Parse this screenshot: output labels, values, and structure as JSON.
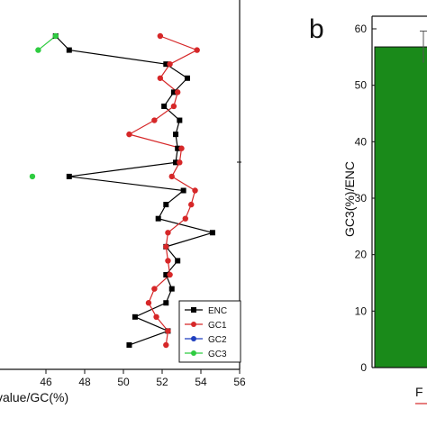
{
  "panel_b_letter": "b",
  "chart_data": [
    {
      "type": "scatter",
      "xlabel": "value/GC(%)",
      "ylabel": "",
      "xlim": [
        44,
        56
      ],
      "xticks": [
        "46",
        "48",
        "50",
        "52",
        "54",
        "56"
      ],
      "grid": false,
      "legend_position": "bottom-right",
      "series": [
        {
          "name": "ENC",
          "color": "#000000",
          "marker": "square",
          "x": [
            46.5,
            47.2,
            52.2,
            53.3,
            52.6,
            52.1,
            52.9,
            52.7,
            52.8,
            52.7,
            47.2,
            53.1,
            52.2,
            51.8,
            54.6,
            52.2,
            52.8,
            52.2,
            52.5,
            52.2,
            50.6,
            52.3,
            50.3
          ],
          "y": [
            1,
            2,
            3,
            4,
            5,
            6,
            7,
            8,
            9,
            10,
            11,
            12,
            13,
            14,
            15,
            16,
            17,
            18,
            19,
            20,
            21,
            22,
            23
          ]
        },
        {
          "name": "GC1",
          "color": "#d62728",
          "marker": "circle",
          "x": [
            51.9,
            53.8,
            52.4,
            51.9,
            52.8,
            52.6,
            51.6,
            50.3,
            53.0,
            52.9,
            52.5,
            53.7,
            53.5,
            53.2,
            52.3,
            52.2,
            52.3,
            52.4,
            51.6,
            51.3,
            51.7,
            52.3,
            52.2
          ],
          "y": [
            1,
            2,
            3,
            4,
            5,
            6,
            7,
            8,
            9,
            10,
            11,
            12,
            13,
            14,
            15,
            16,
            17,
            18,
            19,
            20,
            21,
            22,
            23
          ]
        },
        {
          "name": "GC2",
          "color": "#1f3fbf",
          "marker": "circle",
          "x": [],
          "y": []
        },
        {
          "name": "GC3",
          "color": "#2ecc40",
          "marker": "circle",
          "x": [
            46.5,
            45.6,
            45.3
          ],
          "y": [
            1,
            2,
            11
          ]
        }
      ]
    },
    {
      "type": "bar",
      "ylabel": "GC3(%)/ENC",
      "ylim": [
        0,
        60
      ],
      "yticks": [
        "0",
        "10",
        "20",
        "30",
        "40",
        "50",
        "60"
      ],
      "categories": [
        "F"
      ],
      "values": [
        56.8
      ],
      "error": [
        2.8
      ],
      "bar_color": "#1a8a1a"
    }
  ]
}
